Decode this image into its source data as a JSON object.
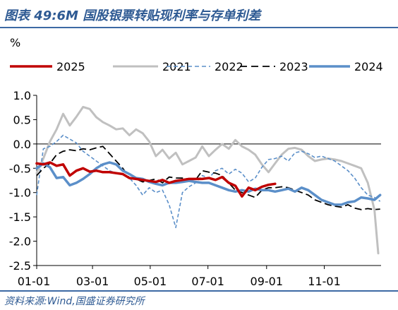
{
  "title": "图表 49:6M 国股银票转贴现利率与存单利差",
  "source": "资料来源:Wind,国盛证券研究所",
  "chart_data": {
    "type": "line",
    "unit_label": "%",
    "ylim": [
      -2.5,
      1.0
    ],
    "yticks": [
      1.0,
      0.5,
      0.0,
      -0.5,
      -1.0,
      -1.5,
      -2.0,
      -2.5
    ],
    "ytick_labels": [
      "1.0",
      "0.5",
      "0.0",
      "-0.5",
      "-1.0",
      "-1.5",
      "-2.0",
      "-2.5"
    ],
    "xlim": [
      1,
      365
    ],
    "xticks": [
      1,
      60,
      121,
      182,
      244,
      305
    ],
    "xtick_labels": [
      "01-01",
      "03-01",
      "05-01",
      "07-01",
      "09-01",
      "11-01"
    ],
    "zero_line": true,
    "grid": false,
    "legend_position": "top",
    "series": [
      {
        "name": "2025",
        "color": "#c00000",
        "style": "solid",
        "width": 3.5,
        "x": [
          1,
          8,
          15,
          22,
          29,
          36,
          43,
          50,
          57,
          64,
          71,
          78,
          85,
          92,
          99,
          106,
          113,
          120,
          127,
          134,
          141,
          148,
          155,
          162,
          169,
          176,
          183,
          190,
          197,
          204,
          211,
          218,
          225,
          232,
          239,
          246,
          253
        ],
        "y": [
          -0.4,
          -0.42,
          -0.38,
          -0.45,
          -0.42,
          -0.65,
          -0.55,
          -0.5,
          -0.57,
          -0.55,
          -0.58,
          -0.58,
          -0.6,
          -0.62,
          -0.7,
          -0.72,
          -0.74,
          -0.76,
          -0.78,
          -0.74,
          -0.8,
          -0.76,
          -0.74,
          -0.72,
          -0.72,
          -0.72,
          -0.7,
          -0.74,
          -0.68,
          -0.8,
          -0.86,
          -1.08,
          -0.9,
          -0.95,
          -0.88,
          -0.84,
          -0.82
        ]
      },
      {
        "name": "2021",
        "color": "#c0c0c0",
        "style": "solid",
        "width": 3,
        "x": [
          1,
          8,
          15,
          22,
          29,
          36,
          43,
          50,
          57,
          64,
          71,
          78,
          85,
          92,
          99,
          106,
          113,
          120,
          127,
          134,
          141,
          148,
          155,
          162,
          169,
          176,
          183,
          190,
          197,
          204,
          211,
          218,
          225,
          232,
          239,
          246,
          253,
          260,
          267,
          274,
          281,
          288,
          295,
          302,
          309,
          316,
          323,
          330,
          337,
          344,
          351,
          358,
          362
        ],
        "y": [
          -0.6,
          -0.3,
          0.05,
          0.3,
          0.62,
          0.38,
          0.56,
          0.76,
          0.72,
          0.55,
          0.45,
          0.38,
          0.3,
          0.32,
          0.18,
          0.3,
          0.22,
          0.05,
          -0.25,
          -0.12,
          -0.3,
          -0.18,
          -0.42,
          -0.35,
          -0.28,
          -0.05,
          -0.25,
          -0.12,
          0.0,
          -0.1,
          0.08,
          -0.05,
          -0.12,
          -0.22,
          -0.42,
          -0.58,
          -0.4,
          -0.22,
          -0.1,
          -0.08,
          -0.12,
          -0.25,
          -0.35,
          -0.32,
          -0.3,
          -0.32,
          -0.35,
          -0.4,
          -0.45,
          -0.5,
          -0.8,
          -1.35,
          -2.25
        ]
      },
      {
        "name": "2022",
        "color": "#5b8fc9",
        "style": "dashed",
        "width": 1.6,
        "x": [
          1,
          8,
          15,
          22,
          29,
          36,
          43,
          50,
          57,
          64,
          71,
          78,
          85,
          92,
          99,
          106,
          113,
          120,
          127,
          134,
          141,
          148,
          155,
          162,
          169,
          176,
          183,
          190,
          197,
          204,
          211,
          218,
          225,
          232,
          239,
          246,
          253,
          260,
          267,
          274,
          281,
          288,
          295,
          302,
          309,
          316,
          323,
          330,
          337,
          344,
          351,
          358,
          364
        ],
        "y": [
          -1.05,
          -0.1,
          -0.05,
          0.05,
          0.18,
          0.1,
          0.02,
          -0.15,
          -0.25,
          -0.35,
          -0.45,
          -0.55,
          -0.6,
          -0.62,
          -0.7,
          -0.85,
          -1.05,
          -0.9,
          -1.0,
          -0.95,
          -1.25,
          -1.72,
          -1.0,
          -0.88,
          -0.8,
          -0.65,
          -0.7,
          -0.55,
          -0.5,
          -0.62,
          -0.52,
          -0.6,
          -0.78,
          -0.7,
          -0.48,
          -0.32,
          -0.3,
          -0.25,
          -0.35,
          -0.18,
          -0.15,
          -0.2,
          -0.28,
          -0.25,
          -0.3,
          -0.35,
          -0.45,
          -0.55,
          -0.7,
          -0.9,
          -1.05,
          -1.1,
          -1.18
        ]
      },
      {
        "name": "2023",
        "color": "#000000",
        "style": "dashed",
        "width": 1.8,
        "x": [
          1,
          8,
          15,
          22,
          29,
          36,
          43,
          50,
          57,
          64,
          71,
          78,
          85,
          92,
          99,
          106,
          113,
          120,
          127,
          134,
          141,
          148,
          155,
          162,
          169,
          176,
          183,
          190,
          197,
          204,
          211,
          218,
          225,
          232,
          239,
          246,
          253,
          260,
          267,
          274,
          281,
          288,
          295,
          302,
          309,
          316,
          323,
          330,
          337,
          344,
          351,
          358,
          364
        ],
        "y": [
          -0.65,
          -0.5,
          -0.4,
          -0.22,
          -0.15,
          -0.12,
          -0.14,
          -0.1,
          -0.12,
          -0.08,
          -0.05,
          -0.2,
          -0.35,
          -0.5,
          -0.7,
          -0.72,
          -0.78,
          -0.75,
          -0.72,
          -0.8,
          -0.68,
          -0.7,
          -0.7,
          -0.72,
          -0.74,
          -0.55,
          -0.58,
          -0.6,
          -0.65,
          -0.8,
          -0.95,
          -1.0,
          -1.05,
          -1.1,
          -0.95,
          -0.9,
          -0.9,
          -0.88,
          -0.9,
          -0.95,
          -1.0,
          -1.05,
          -1.15,
          -1.2,
          -1.25,
          -1.28,
          -1.3,
          -1.25,
          -1.32,
          -1.35,
          -1.33,
          -1.35,
          -1.34
        ]
      },
      {
        "name": "2024",
        "color": "#5b8fc9",
        "style": "solid",
        "width": 3.5,
        "x": [
          1,
          8,
          15,
          22,
          29,
          36,
          43,
          50,
          57,
          64,
          71,
          78,
          85,
          92,
          99,
          106,
          113,
          120,
          127,
          134,
          141,
          148,
          155,
          162,
          169,
          176,
          183,
          190,
          197,
          204,
          211,
          218,
          225,
          232,
          239,
          246,
          253,
          260,
          267,
          274,
          281,
          288,
          295,
          302,
          309,
          316,
          323,
          330,
          337,
          344,
          351,
          358,
          364
        ],
        "y": [
          -0.5,
          -0.4,
          -0.48,
          -0.7,
          -0.68,
          -0.85,
          -0.8,
          -0.72,
          -0.62,
          -0.5,
          -0.42,
          -0.38,
          -0.42,
          -0.55,
          -0.62,
          -0.7,
          -0.72,
          -0.78,
          -0.82,
          -0.85,
          -0.8,
          -0.8,
          -0.78,
          -0.76,
          -0.78,
          -0.8,
          -0.8,
          -0.85,
          -0.9,
          -0.95,
          -0.98,
          -0.95,
          -0.98,
          -0.92,
          -0.95,
          -0.95,
          -0.98,
          -0.95,
          -0.92,
          -0.98,
          -0.9,
          -0.95,
          -1.05,
          -1.15,
          -1.2,
          -1.25,
          -1.25,
          -1.2,
          -1.18,
          -1.1,
          -1.12,
          -1.15,
          -1.05
        ]
      }
    ]
  }
}
